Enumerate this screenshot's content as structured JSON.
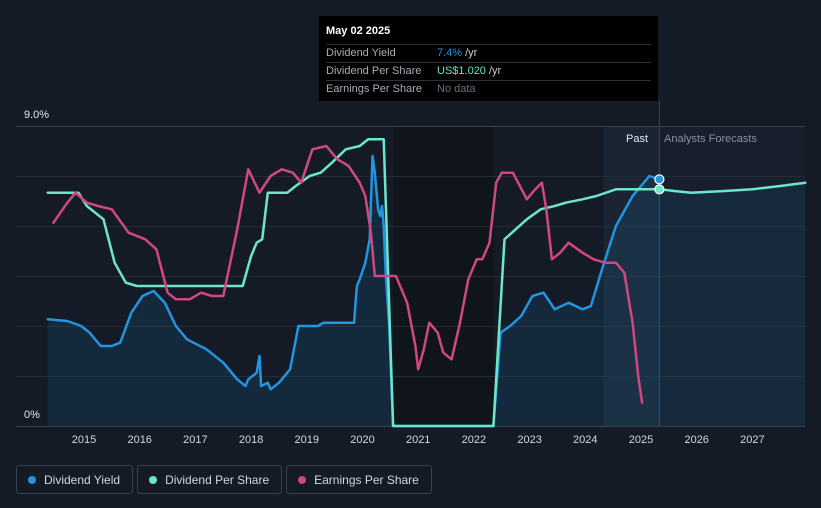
{
  "chart_data": {
    "type": "line",
    "y_axis": {
      "top_label": "9.0%",
      "bottom_label": "0%"
    },
    "x_ticks": [
      "2015",
      "2016",
      "2017",
      "2018",
      "2019",
      "2020",
      "2021",
      "2022",
      "2023",
      "2024",
      "2025",
      "2026",
      "2027"
    ],
    "regions": {
      "past_label": "Past",
      "forecast_label": "Analysts Forecasts"
    },
    "tooltip": {
      "date": "May 02 2025",
      "rows": [
        {
          "label": "Dividend Yield",
          "value": "7.4%",
          "unit": "/yr"
        },
        {
          "label": "Dividend Per Share",
          "value": "US$1.020",
          "unit": "/yr"
        },
        {
          "label": "Earnings Per Share",
          "value": "No data",
          "unit": ""
        }
      ]
    },
    "series": [
      {
        "name": "Dividend Yield",
        "color": "#2394df",
        "unit": "%",
        "points": [
          [
            2014.35,
            3.2
          ],
          [
            2014.7,
            3.15
          ],
          [
            2014.95,
            3.0
          ],
          [
            2015.1,
            2.8
          ],
          [
            2015.3,
            2.4
          ],
          [
            2015.5,
            2.4
          ],
          [
            2015.65,
            2.5
          ],
          [
            2015.85,
            3.4
          ],
          [
            2016.05,
            3.9
          ],
          [
            2016.25,
            4.05
          ],
          [
            2016.45,
            3.7
          ],
          [
            2016.65,
            3.0
          ],
          [
            2016.85,
            2.6
          ],
          [
            2017.2,
            2.3
          ],
          [
            2017.5,
            1.9
          ],
          [
            2017.75,
            1.4
          ],
          [
            2017.9,
            1.2
          ],
          [
            2017.95,
            1.4
          ],
          [
            2018.1,
            1.6
          ],
          [
            2018.15,
            2.1
          ],
          [
            2018.18,
            1.2
          ],
          [
            2018.3,
            1.3
          ],
          [
            2018.35,
            1.1
          ],
          [
            2018.5,
            1.3
          ],
          [
            2018.7,
            1.7
          ],
          [
            2018.85,
            3.0
          ],
          [
            2019.0,
            3.0
          ],
          [
            2019.2,
            3.0
          ],
          [
            2019.3,
            3.1
          ],
          [
            2019.6,
            3.1
          ],
          [
            2019.85,
            3.1
          ],
          [
            2019.88,
            3.8
          ],
          [
            2019.9,
            4.2
          ],
          [
            2019.95,
            4.4
          ],
          [
            2020.05,
            4.9
          ],
          [
            2020.13,
            5.6
          ],
          [
            2020.18,
            8.1
          ],
          [
            2020.22,
            7.6
          ],
          [
            2020.28,
            6.5
          ],
          [
            2020.32,
            6.3
          ],
          [
            2020.35,
            6.6
          ],
          [
            2020.38,
            6.0
          ],
          [
            2020.42,
            4.5
          ],
          [
            2020.48,
            3.0
          ],
          [
            2020.55,
            0.0
          ],
          [
            2022.35,
            0.0
          ],
          [
            2022.48,
            2.8
          ],
          [
            2022.65,
            3.0
          ],
          [
            2022.85,
            3.3
          ],
          [
            2023.05,
            3.9
          ],
          [
            2023.25,
            4.0
          ],
          [
            2023.45,
            3.5
          ],
          [
            2023.7,
            3.7
          ],
          [
            2023.95,
            3.5
          ],
          [
            2024.1,
            3.6
          ],
          [
            2024.3,
            4.7
          ],
          [
            2024.55,
            6.0
          ],
          [
            2024.85,
            6.9
          ],
          [
            2025.0,
            7.2
          ],
          [
            2025.15,
            7.5
          ],
          [
            2025.33,
            7.4
          ]
        ]
      },
      {
        "name": "Dividend Per Share",
        "color": "#6ce5c9",
        "unit": "US$",
        "points": [
          [
            2014.35,
            7.0
          ],
          [
            2014.9,
            7.0
          ],
          [
            2015.05,
            6.6
          ],
          [
            2015.35,
            6.2
          ],
          [
            2015.55,
            4.9
          ],
          [
            2015.75,
            4.3
          ],
          [
            2015.95,
            4.2
          ],
          [
            2016.3,
            4.2
          ],
          [
            2016.7,
            4.2
          ],
          [
            2017.2,
            4.2
          ],
          [
            2017.7,
            4.2
          ],
          [
            2017.85,
            4.2
          ],
          [
            2018.0,
            5.1
          ],
          [
            2018.1,
            5.5
          ],
          [
            2018.2,
            5.6
          ],
          [
            2018.3,
            7.0
          ],
          [
            2018.65,
            7.0
          ],
          [
            2018.8,
            7.2
          ],
          [
            2019.05,
            7.5
          ],
          [
            2019.25,
            7.6
          ],
          [
            2019.45,
            7.9
          ],
          [
            2019.7,
            8.3
          ],
          [
            2019.95,
            8.4
          ],
          [
            2020.1,
            8.6
          ],
          [
            2020.3,
            8.6
          ],
          [
            2020.38,
            8.6
          ],
          [
            2020.55,
            0.0
          ],
          [
            2022.35,
            0.0
          ],
          [
            2022.55,
            5.6
          ],
          [
            2022.75,
            5.9
          ],
          [
            2022.95,
            6.2
          ],
          [
            2023.2,
            6.5
          ],
          [
            2023.45,
            6.6
          ],
          [
            2023.65,
            6.7
          ],
          [
            2023.95,
            6.8
          ],
          [
            2024.2,
            6.9
          ],
          [
            2024.55,
            7.1
          ],
          [
            2024.8,
            7.1
          ],
          [
            2025.33,
            7.1
          ],
          [
            2025.6,
            7.05
          ],
          [
            2025.9,
            7.0
          ],
          [
            2026.5,
            7.05
          ],
          [
            2027.0,
            7.1
          ],
          [
            2027.5,
            7.2
          ],
          [
            2027.95,
            7.3
          ]
        ]
      },
      {
        "name": "Earnings Per Share",
        "color": "#d1477f",
        "unit": "US$",
        "points": [
          [
            2014.45,
            6.1
          ],
          [
            2014.7,
            6.7
          ],
          [
            2014.85,
            7.0
          ],
          [
            2015.05,
            6.7
          ],
          [
            2015.25,
            6.6
          ],
          [
            2015.5,
            6.5
          ],
          [
            2015.8,
            5.8
          ],
          [
            2016.1,
            5.6
          ],
          [
            2016.3,
            5.3
          ],
          [
            2016.5,
            4.0
          ],
          [
            2016.65,
            3.8
          ],
          [
            2016.9,
            3.8
          ],
          [
            2017.1,
            4.0
          ],
          [
            2017.3,
            3.9
          ],
          [
            2017.5,
            3.9
          ],
          [
            2017.75,
            5.9
          ],
          [
            2017.95,
            7.7
          ],
          [
            2018.15,
            7.0
          ],
          [
            2018.35,
            7.5
          ],
          [
            2018.55,
            7.7
          ],
          [
            2018.75,
            7.6
          ],
          [
            2018.9,
            7.3
          ],
          [
            2019.1,
            8.3
          ],
          [
            2019.35,
            8.4
          ],
          [
            2019.55,
            8.0
          ],
          [
            2019.75,
            7.8
          ],
          [
            2019.95,
            7.3
          ],
          [
            2020.05,
            6.9
          ],
          [
            2020.15,
            5.8
          ],
          [
            2020.22,
            4.5
          ],
          [
            2020.45,
            4.5
          ],
          [
            2020.6,
            4.5
          ],
          [
            2020.8,
            3.7
          ],
          [
            2020.95,
            2.4
          ],
          [
            2021.0,
            1.7
          ],
          [
            2021.1,
            2.3
          ],
          [
            2021.2,
            3.1
          ],
          [
            2021.35,
            2.8
          ],
          [
            2021.45,
            2.2
          ],
          [
            2021.6,
            2.0
          ],
          [
            2021.75,
            3.1
          ],
          [
            2021.9,
            4.4
          ],
          [
            2022.05,
            5.0
          ],
          [
            2022.15,
            5.0
          ],
          [
            2022.28,
            5.5
          ],
          [
            2022.4,
            7.3
          ],
          [
            2022.5,
            7.6
          ],
          [
            2022.7,
            7.6
          ],
          [
            2022.95,
            6.8
          ],
          [
            2023.1,
            7.1
          ],
          [
            2023.22,
            7.3
          ],
          [
            2023.3,
            6.5
          ],
          [
            2023.4,
            5.0
          ],
          [
            2023.55,
            5.2
          ],
          [
            2023.7,
            5.5
          ],
          [
            2023.95,
            5.2
          ],
          [
            2024.15,
            5.0
          ],
          [
            2024.35,
            4.9
          ],
          [
            2024.55,
            4.9
          ],
          [
            2024.7,
            4.6
          ],
          [
            2024.85,
            3.1
          ],
          [
            2024.95,
            1.5
          ],
          [
            2025.02,
            0.7
          ]
        ]
      }
    ]
  },
  "legend": [
    {
      "label": "Dividend Yield",
      "color": "#2394df"
    },
    {
      "label": "Dividend Per Share",
      "color": "#6ce5c9"
    },
    {
      "label": "Earnings Per Share",
      "color": "#d1477f"
    }
  ]
}
